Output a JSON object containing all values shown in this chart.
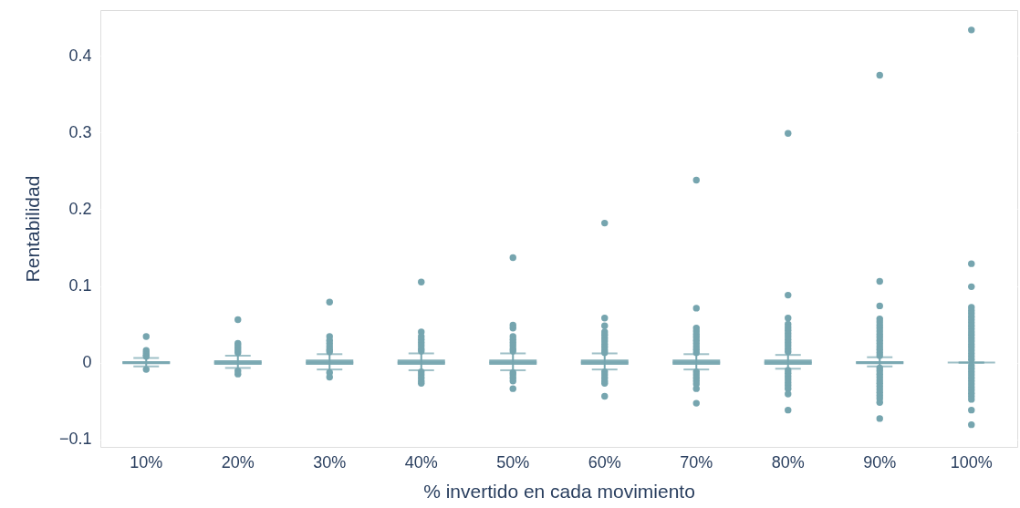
{
  "chart_data": {
    "type": "box",
    "xlabel": "% invertido en cada movimiento",
    "ylabel": "Rentabilidad",
    "categories": [
      "10%",
      "20%",
      "30%",
      "40%",
      "50%",
      "60%",
      "70%",
      "80%",
      "90%",
      "100%"
    ],
    "series": [
      {
        "color": "#76a5af",
        "boxes": [
          {
            "low": -0.005,
            "q1": -0.002,
            "median": 0,
            "q3": 0.002,
            "high": 0.006,
            "outliers": [
              0.034,
              0.016,
              0.013,
              0.01,
              0.008,
              -0.009
            ]
          },
          {
            "low": -0.007,
            "q1": -0.003,
            "median": 0,
            "q3": 0.003,
            "high": 0.009,
            "outliers": [
              0.056,
              0.025,
              0.022,
              0.019,
              0.016,
              0.013,
              -0.011,
              -0.015
            ]
          },
          {
            "low": -0.009,
            "q1": -0.003,
            "median": 0,
            "q3": 0.004,
            "high": 0.011,
            "outliers": [
              0.079,
              0.034,
              0.029,
              0.025,
              0.021,
              0.017,
              0.014,
              -0.013,
              -0.019
            ]
          },
          {
            "low": -0.01,
            "q1": -0.003,
            "median": 0,
            "q3": 0.004,
            "high": 0.012,
            "outliers": [
              0.105,
              0.04,
              0.034,
              0.03,
              0.026,
              0.022,
              0.018,
              0.015,
              -0.012,
              -0.016,
              -0.02,
              -0.024,
              -0.027
            ]
          },
          {
            "low": -0.01,
            "q1": -0.003,
            "median": 0,
            "q3": 0.004,
            "high": 0.012,
            "outliers": [
              0.137,
              0.049,
              0.045,
              0.034,
              0.03,
              0.026,
              0.022,
              0.018,
              0.015,
              -0.013,
              -0.016,
              -0.02,
              -0.024,
              -0.034
            ]
          },
          {
            "low": -0.009,
            "q1": -0.003,
            "median": 0,
            "q3": 0.004,
            "high": 0.012,
            "outliers": [
              0.182,
              0.058,
              0.048,
              0.04,
              0.036,
              0.032,
              0.028,
              0.024,
              0.02,
              0.016,
              0.013,
              -0.012,
              -0.016,
              -0.02,
              -0.024,
              -0.027,
              -0.044
            ]
          },
          {
            "low": -0.009,
            "q1": -0.003,
            "median": 0,
            "q3": 0.004,
            "high": 0.011,
            "outliers": [
              0.238,
              0.071,
              0.045,
              0.041,
              0.037,
              0.033,
              0.029,
              0.025,
              0.021,
              0.017,
              0.013,
              -0.012,
              -0.016,
              -0.02,
              -0.024,
              -0.028,
              -0.034,
              -0.053
            ]
          },
          {
            "low": -0.008,
            "q1": -0.003,
            "median": 0,
            "q3": 0.004,
            "high": 0.01,
            "outliers": [
              0.299,
              0.088,
              0.058,
              0.05,
              0.046,
              0.042,
              0.038,
              0.034,
              0.03,
              0.026,
              0.022,
              0.018,
              0.014,
              -0.01,
              -0.014,
              -0.018,
              -0.022,
              -0.026,
              -0.03,
              -0.034,
              -0.041,
              -0.062
            ]
          },
          {
            "low": -0.005,
            "q1": -0.002,
            "median": 0,
            "q3": 0.002,
            "high": 0.007,
            "outliers": [
              0.375,
              0.106,
              0.074,
              0.057,
              0.053,
              0.049,
              0.045,
              0.041,
              0.037,
              0.033,
              0.029,
              0.025,
              0.021,
              0.017,
              0.013,
              0.009,
              -0.007,
              -0.011,
              -0.015,
              -0.019,
              -0.023,
              -0.027,
              -0.031,
              -0.035,
              -0.039,
              -0.043,
              -0.047,
              -0.052,
              -0.073
            ]
          },
          {
            "low": 0,
            "q1": 0,
            "median": 0,
            "q3": 0,
            "high": 0,
            "outliers": [
              0.434,
              0.129,
              0.099,
              0.072,
              0.068,
              0.064,
              0.06,
              0.056,
              0.052,
              0.048,
              0.044,
              0.04,
              0.036,
              0.032,
              0.028,
              0.024,
              0.02,
              0.016,
              0.012,
              0.008,
              0.004,
              -0.004,
              -0.008,
              -0.012,
              -0.016,
              -0.02,
              -0.024,
              -0.028,
              -0.032,
              -0.036,
              -0.04,
              -0.044,
              -0.048,
              -0.062,
              -0.081
            ]
          }
        ]
      }
    ],
    "ylim": [
      -0.11,
      0.46
    ],
    "yticks": [
      {
        "value": -0.1,
        "label": "−0.1"
      },
      0,
      0.1,
      0.2,
      0.3,
      0.4
    ],
    "grid": "y"
  }
}
